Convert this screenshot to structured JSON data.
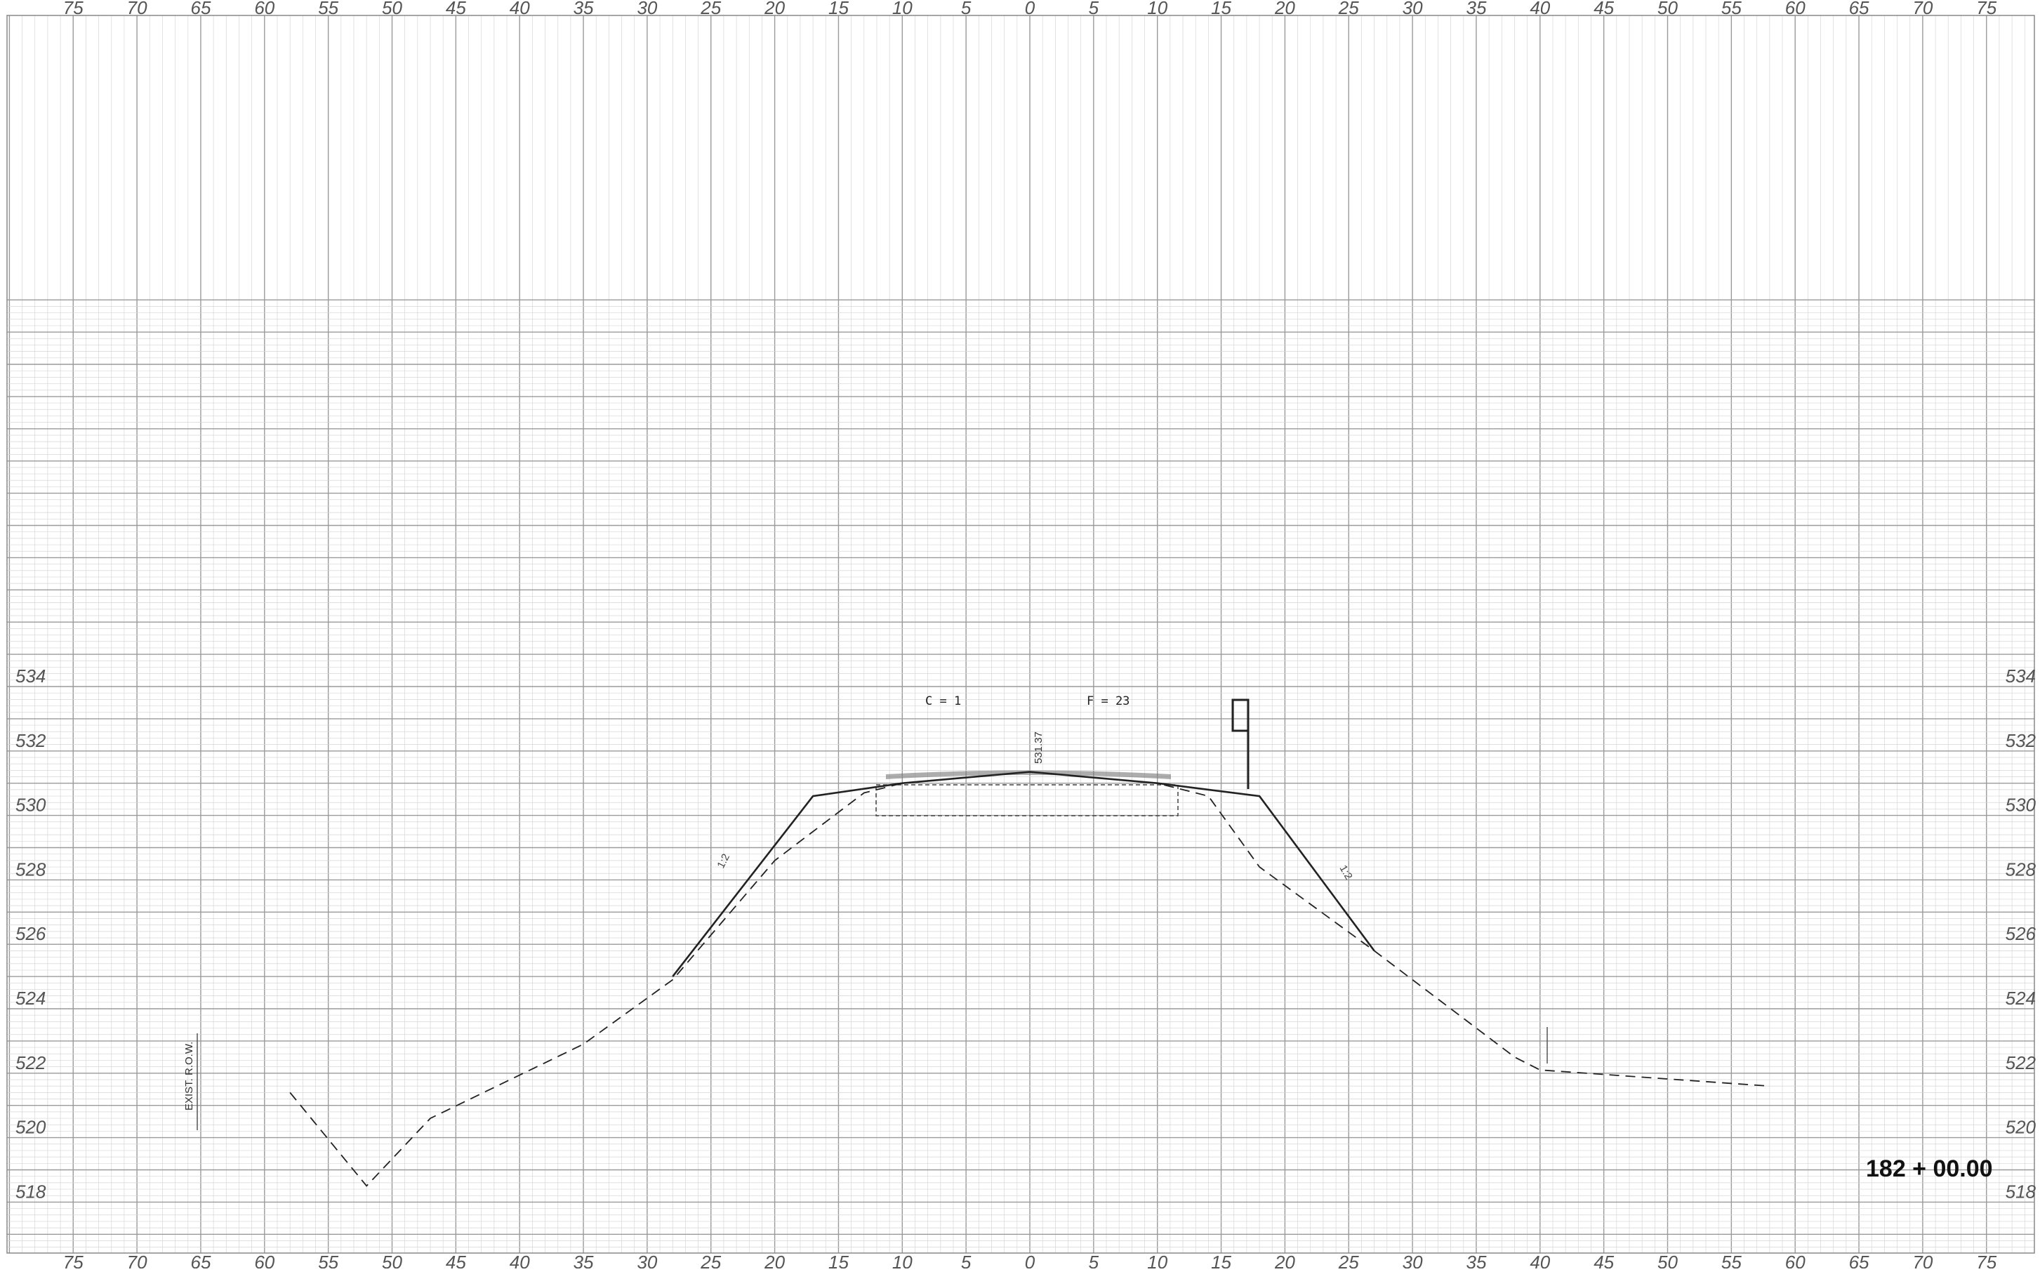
{
  "sheet": {
    "top_offsets": [
      "75",
      "70",
      "65",
      "60",
      "55",
      "50",
      "45",
      "40",
      "35",
      "30",
      "25",
      "20",
      "15",
      "10",
      "5",
      "0",
      "5",
      "10",
      "15",
      "20",
      "25",
      "30",
      "35",
      "40",
      "45",
      "50",
      "55",
      "60",
      "65",
      "70",
      "75"
    ],
    "bottom_offsets": [
      "75",
      "70",
      "65",
      "60",
      "55",
      "50",
      "45",
      "40",
      "35",
      "30",
      "25",
      "20",
      "15",
      "10",
      "5",
      "0",
      "5",
      "10",
      "15",
      "20",
      "25",
      "30",
      "35",
      "40",
      "45",
      "50",
      "55",
      "60",
      "65",
      "70",
      "75"
    ],
    "elevations": [
      "534",
      "532",
      "530",
      "528",
      "526",
      "524",
      "522",
      "520",
      "518"
    ],
    "station": "182 + 00.00",
    "cut_note": "C = 1",
    "fill_note": "F = 23",
    "centerline_elev": "531.37",
    "row_label": "EXIST. R.O.W.",
    "slope_left": "1:2",
    "slope_right": "1:2"
  },
  "colors": {
    "grid_minor": "#d6d6d6",
    "grid_major": "#9a9a9a",
    "ink": "#222222"
  },
  "chart_data": {
    "type": "line",
    "xlabel": "",
    "ylabel": "",
    "xlim": [
      -75,
      75
    ],
    "ylim": [
      517.5,
      534
    ],
    "series": [
      {
        "style": "dashed",
        "points": [
          [
            -58,
            521.4
          ],
          [
            -52,
            518.5
          ],
          [
            -47,
            520.6
          ],
          [
            -35,
            522.9
          ],
          [
            -28,
            524.9
          ],
          [
            -20,
            528.6
          ],
          [
            -13,
            530.7
          ],
          [
            -10,
            531.0
          ],
          [
            0,
            531.35
          ],
          [
            10,
            531.0
          ],
          [
            14,
            530.6
          ],
          [
            18,
            528.4
          ],
          [
            27,
            525.8
          ],
          [
            38,
            522.5
          ],
          [
            40,
            522.1
          ],
          [
            58,
            521.6
          ]
        ]
      },
      {
        "style": "solid",
        "points": [
          [
            -28,
            525.0
          ],
          [
            -17,
            530.6
          ],
          [
            -10,
            531.0
          ],
          [
            0,
            531.35
          ],
          [
            10,
            531.0
          ],
          [
            14,
            530.8
          ],
          [
            18,
            530.6
          ],
          [
            27,
            525.8
          ]
        ]
      }
    ]
  }
}
